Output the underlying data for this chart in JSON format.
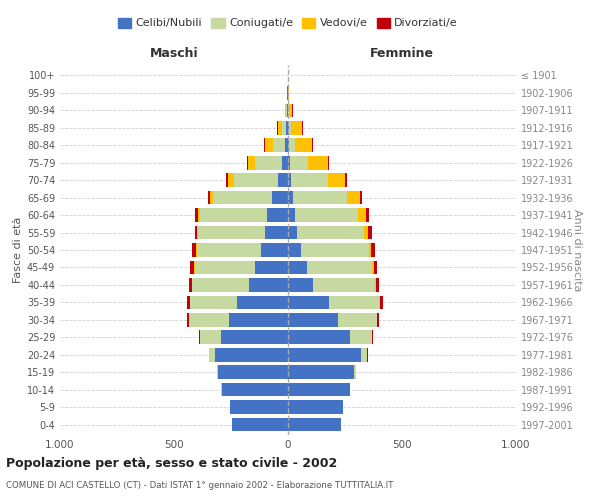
{
  "age_groups": [
    "100+",
    "95-99",
    "90-94",
    "85-89",
    "80-84",
    "75-79",
    "70-74",
    "65-69",
    "60-64",
    "55-59",
    "50-54",
    "45-49",
    "40-44",
    "35-39",
    "30-34",
    "25-29",
    "20-24",
    "15-19",
    "10-14",
    "5-9",
    "0-4"
  ],
  "birth_years": [
    "≤ 1901",
    "1902-1906",
    "1907-1911",
    "1912-1916",
    "1917-1921",
    "1922-1926",
    "1927-1931",
    "1932-1936",
    "1937-1941",
    "1942-1946",
    "1947-1951",
    "1952-1956",
    "1957-1961",
    "1962-1966",
    "1967-1971",
    "1972-1976",
    "1977-1981",
    "1982-1986",
    "1987-1991",
    "1992-1996",
    "1997-2001"
  ],
  "maschi_celibi": [
    1,
    3,
    5,
    10,
    15,
    25,
    45,
    70,
    90,
    100,
    120,
    145,
    170,
    225,
    260,
    295,
    320,
    305,
    290,
    255,
    245
  ],
  "maschi_coniugati": [
    0,
    2,
    5,
    18,
    50,
    120,
    190,
    260,
    295,
    295,
    280,
    265,
    250,
    205,
    175,
    90,
    25,
    5,
    2,
    1,
    0
  ],
  "maschi_vedovi": [
    0,
    1,
    4,
    18,
    38,
    32,
    28,
    14,
    9,
    5,
    3,
    2,
    2,
    1,
    1,
    1,
    0,
    0,
    0,
    0,
    0
  ],
  "maschi_divorziati": [
    0,
    0,
    0,
    1,
    2,
    5,
    7,
    9,
    14,
    9,
    18,
    16,
    14,
    11,
    7,
    3,
    2,
    1,
    0,
    0,
    0
  ],
  "femmine_celibi": [
    0,
    1,
    2,
    4,
    6,
    10,
    14,
    20,
    30,
    40,
    58,
    82,
    110,
    182,
    218,
    272,
    318,
    290,
    272,
    242,
    232
  ],
  "femmine_coniugate": [
    0,
    1,
    3,
    10,
    25,
    78,
    160,
    238,
    278,
    295,
    298,
    288,
    272,
    218,
    172,
    95,
    30,
    7,
    2,
    1,
    0
  ],
  "femmine_vedove": [
    0,
    3,
    14,
    48,
    76,
    88,
    76,
    58,
    33,
    18,
    9,
    5,
    3,
    2,
    1,
    1,
    0,
    0,
    0,
    0,
    0
  ],
  "femmine_divorziate": [
    0,
    0,
    1,
    2,
    2,
    4,
    7,
    9,
    14,
    14,
    18,
    16,
    14,
    14,
    7,
    3,
    2,
    1,
    0,
    0,
    0
  ],
  "color_celibi": "#4472c4",
  "color_coniugati": "#c5d9a0",
  "color_vedovi": "#ffc000",
  "color_divorziati": "#c0000b",
  "title": "Popolazione per età, sesso e stato civile - 2002",
  "subtitle": "COMUNE DI ACI CASTELLO (CT) - Dati ISTAT 1° gennaio 2002 - Elaborazione TUTTITALIA.IT",
  "xlabel_left": "Maschi",
  "xlabel_right": "Femmine",
  "ylabel_left": "Fasce di età",
  "ylabel_right": "Anni di nascita",
  "xlim": 1000,
  "background_color": "#ffffff",
  "grid_color": "#d0d0d0"
}
